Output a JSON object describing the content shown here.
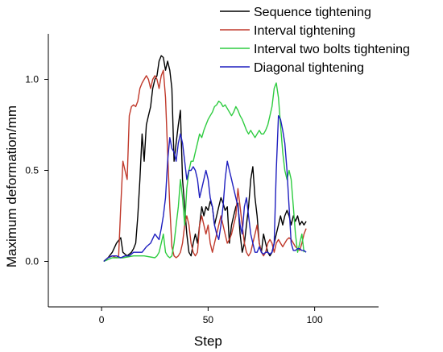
{
  "chart_data": {
    "type": "line",
    "xlabel": "Step",
    "ylabel": "Maximum deformation/mm",
    "xlim": [
      -25,
      130
    ],
    "ylim": [
      -0.25,
      1.25
    ],
    "xticks": [
      0,
      50,
      100
    ],
    "xtick_labels": [
      "0",
      "50",
      "100"
    ],
    "yticks": [
      0.0,
      0.5,
      1.0
    ],
    "ytick_labels": [
      "0.0",
      "0.5",
      "1.0"
    ],
    "legend_position": "top-right",
    "series": [
      {
        "name": "Sequence tightening",
        "color": "#000000",
        "x": [
          1,
          3,
          5,
          7,
          9,
          10,
          11,
          12,
          13,
          14,
          15,
          16,
          17,
          18,
          19,
          20,
          21,
          22,
          23,
          24,
          25,
          26,
          27,
          28,
          29,
          30,
          31,
          32,
          33,
          34,
          35,
          36,
          37,
          38,
          39,
          40,
          41,
          42,
          43,
          44,
          45,
          46,
          47,
          48,
          49,
          50,
          51,
          52,
          53,
          54,
          55,
          56,
          57,
          58,
          59,
          60,
          61,
          62,
          63,
          64,
          65,
          66,
          67,
          68,
          69,
          70,
          71,
          72,
          73,
          74,
          75,
          76,
          77,
          78,
          79,
          80,
          81,
          82,
          83,
          84,
          85,
          86,
          87,
          88,
          89,
          90,
          91,
          92,
          93,
          94,
          95,
          96
        ],
        "y": [
          0.0,
          0.02,
          0.05,
          0.1,
          0.13,
          0.05,
          0.04,
          0.03,
          0.04,
          0.05,
          0.07,
          0.1,
          0.25,
          0.45,
          0.7,
          0.55,
          0.75,
          0.8,
          0.85,
          0.95,
          1.0,
          1.02,
          1.1,
          1.13,
          1.12,
          1.05,
          1.1,
          1.05,
          0.95,
          0.55,
          0.65,
          0.75,
          0.83,
          0.45,
          0.3,
          0.15,
          0.05,
          0.03,
          0.1,
          0.15,
          0.1,
          0.2,
          0.3,
          0.25,
          0.3,
          0.28,
          0.33,
          0.3,
          0.2,
          0.25,
          0.3,
          0.35,
          0.32,
          0.28,
          0.3,
          0.1,
          0.2,
          0.25,
          0.3,
          0.32,
          0.15,
          0.05,
          0.1,
          0.2,
          0.3,
          0.45,
          0.52,
          0.35,
          0.25,
          0.1,
          0.05,
          0.15,
          0.1,
          0.05,
          0.03,
          0.05,
          0.1,
          0.15,
          0.2,
          0.25,
          0.2,
          0.25,
          0.28,
          0.25,
          0.2,
          0.25,
          0.22,
          0.25,
          0.2,
          0.22,
          0.2,
          0.22
        ]
      },
      {
        "name": "Interval tightening",
        "color": "#c0392b",
        "x": [
          1,
          3,
          5,
          7,
          8,
          9,
          10,
          11,
          12,
          13,
          14,
          15,
          16,
          17,
          18,
          19,
          20,
          21,
          22,
          23,
          24,
          25,
          26,
          27,
          28,
          29,
          30,
          31,
          32,
          33,
          34,
          35,
          36,
          37,
          38,
          39,
          40,
          41,
          42,
          43,
          44,
          45,
          46,
          47,
          48,
          49,
          50,
          51,
          52,
          53,
          54,
          55,
          56,
          57,
          58,
          59,
          60,
          61,
          62,
          63,
          64,
          65,
          66,
          67,
          68,
          69,
          70,
          71,
          72,
          73,
          74,
          75,
          76,
          77,
          78,
          79,
          80,
          81,
          82,
          83,
          84,
          85,
          86,
          87,
          88,
          89,
          90,
          91,
          92,
          93,
          94,
          95,
          96
        ],
        "y": [
          0.0,
          0.02,
          0.03,
          0.02,
          0.03,
          0.3,
          0.55,
          0.5,
          0.45,
          0.8,
          0.85,
          0.86,
          0.85,
          0.88,
          0.95,
          0.98,
          1.0,
          1.02,
          1.0,
          0.95,
          1.0,
          1.02,
          1.0,
          0.95,
          1.02,
          1.05,
          0.9,
          0.6,
          0.3,
          0.08,
          0.03,
          0.02,
          0.03,
          0.05,
          0.1,
          0.2,
          0.25,
          0.2,
          0.1,
          0.05,
          0.03,
          0.05,
          0.2,
          0.25,
          0.2,
          0.15,
          0.2,
          0.1,
          0.05,
          0.1,
          0.15,
          0.2,
          0.25,
          0.2,
          0.15,
          0.1,
          0.12,
          0.15,
          0.2,
          0.25,
          0.4,
          0.3,
          0.2,
          0.1,
          0.05,
          0.03,
          0.05,
          0.1,
          0.15,
          0.2,
          0.1,
          0.05,
          0.03,
          0.05,
          0.1,
          0.12,
          0.1,
          0.05,
          0.1,
          0.12,
          0.1,
          0.08,
          0.1,
          0.12,
          0.13,
          0.12,
          0.1,
          0.08,
          0.07,
          0.06,
          0.1,
          0.15,
          0.18
        ]
      },
      {
        "name": "Interval two bolts tightening",
        "color": "#2ecc40",
        "x": [
          1,
          5,
          10,
          15,
          20,
          25,
          26,
          27,
          28,
          29,
          30,
          31,
          32,
          33,
          34,
          35,
          36,
          37,
          38,
          39,
          40,
          41,
          42,
          43,
          44,
          45,
          46,
          47,
          48,
          49,
          50,
          51,
          52,
          53,
          54,
          55,
          56,
          57,
          58,
          59,
          60,
          61,
          62,
          63,
          64,
          65,
          66,
          67,
          68,
          69,
          70,
          71,
          72,
          73,
          74,
          75,
          76,
          77,
          78,
          79,
          80,
          81,
          82,
          83,
          84,
          85,
          86,
          87,
          88,
          89,
          90,
          91,
          92,
          93,
          94,
          95
        ],
        "y": [
          0.0,
          0.02,
          0.02,
          0.03,
          0.03,
          0.02,
          0.03,
          0.05,
          0.1,
          0.15,
          0.05,
          0.03,
          0.02,
          0.03,
          0.1,
          0.2,
          0.3,
          0.45,
          0.35,
          0.2,
          0.4,
          0.5,
          0.55,
          0.55,
          0.6,
          0.65,
          0.7,
          0.68,
          0.72,
          0.75,
          0.78,
          0.8,
          0.82,
          0.85,
          0.86,
          0.88,
          0.87,
          0.85,
          0.86,
          0.84,
          0.82,
          0.8,
          0.82,
          0.85,
          0.83,
          0.8,
          0.78,
          0.75,
          0.72,
          0.7,
          0.72,
          0.7,
          0.68,
          0.7,
          0.72,
          0.7,
          0.7,
          0.72,
          0.75,
          0.8,
          0.85,
          0.95,
          0.98,
          0.9,
          0.75,
          0.6,
          0.5,
          0.45,
          0.5,
          0.45,
          0.3,
          0.15,
          0.05,
          0.1,
          0.15,
          0.05
        ]
      },
      {
        "name": "Diagonal tightening",
        "color": "#1f1fbf",
        "x": [
          1,
          3,
          5,
          7,
          9,
          11,
          13,
          15,
          17,
          19,
          21,
          23,
          25,
          27,
          28,
          29,
          30,
          31,
          32,
          33,
          34,
          35,
          36,
          37,
          38,
          39,
          40,
          41,
          42,
          43,
          44,
          45,
          46,
          47,
          48,
          49,
          50,
          51,
          52,
          53,
          54,
          55,
          56,
          57,
          58,
          59,
          60,
          61,
          62,
          63,
          64,
          65,
          66,
          67,
          68,
          69,
          70,
          71,
          72,
          73,
          74,
          75,
          76,
          77,
          78,
          79,
          80,
          81,
          82,
          83,
          84,
          85,
          86,
          87,
          88,
          89,
          90,
          91,
          92,
          93,
          94,
          95,
          96
        ],
        "y": [
          0.0,
          0.02,
          0.03,
          0.03,
          0.02,
          0.03,
          0.03,
          0.05,
          0.05,
          0.05,
          0.08,
          0.1,
          0.15,
          0.12,
          0.18,
          0.25,
          0.35,
          0.55,
          0.68,
          0.62,
          0.6,
          0.55,
          0.65,
          0.7,
          0.65,
          0.55,
          0.45,
          0.5,
          0.5,
          0.52,
          0.5,
          0.45,
          0.35,
          0.4,
          0.45,
          0.5,
          0.45,
          0.35,
          0.3,
          0.2,
          0.15,
          0.12,
          0.2,
          0.3,
          0.45,
          0.55,
          0.5,
          0.45,
          0.4,
          0.35,
          0.3,
          0.2,
          0.15,
          0.3,
          0.35,
          0.25,
          0.15,
          0.1,
          0.05,
          0.05,
          0.08,
          0.05,
          0.04,
          0.05,
          0.05,
          0.04,
          0.05,
          0.1,
          0.5,
          0.8,
          0.78,
          0.72,
          0.65,
          0.5,
          0.3,
          0.1,
          0.06,
          0.06,
          0.07,
          0.07,
          0.06,
          0.06,
          0.05
        ]
      }
    ]
  }
}
